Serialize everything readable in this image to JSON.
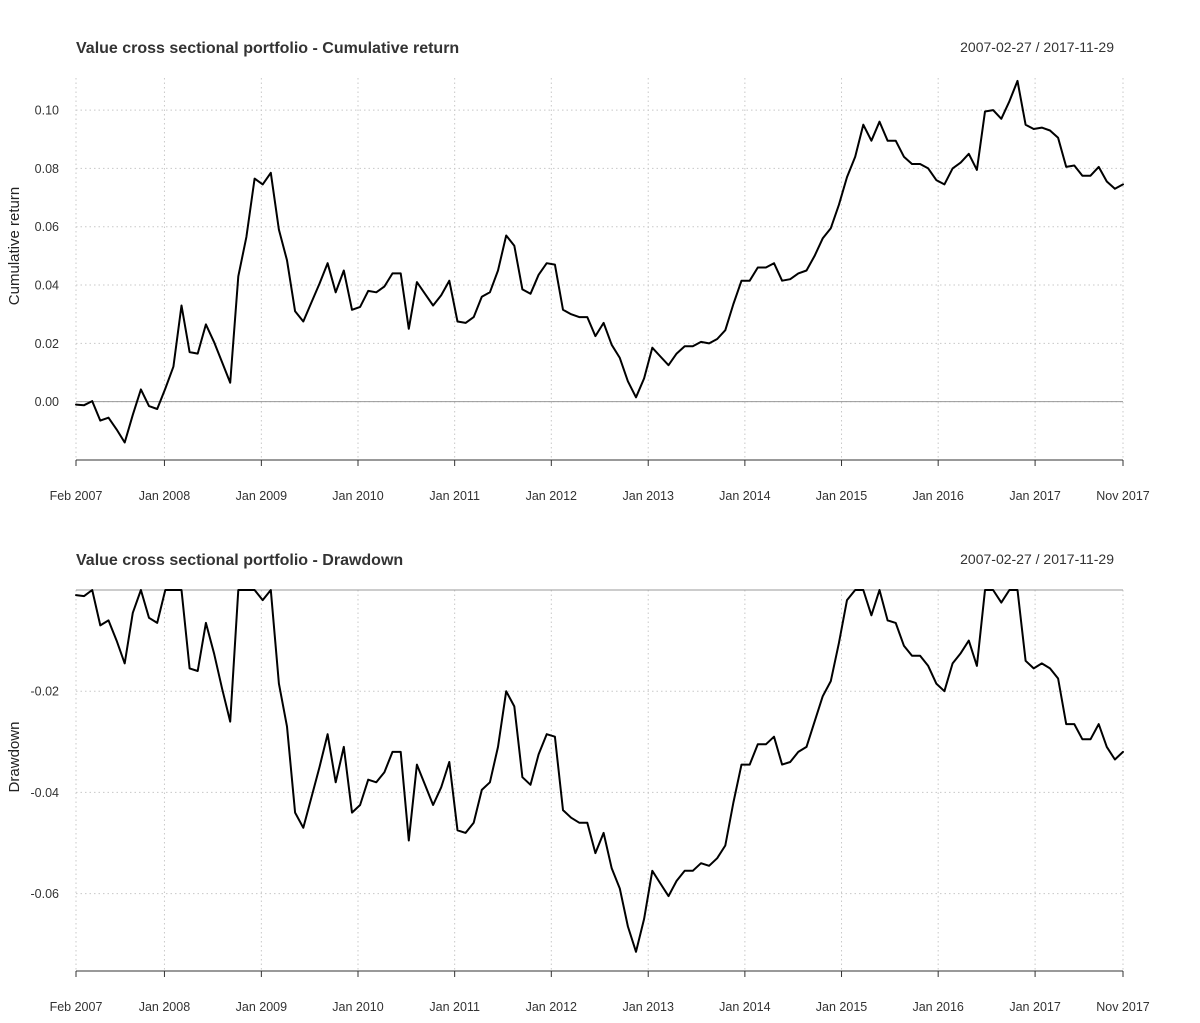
{
  "chart_data": [
    {
      "type": "line",
      "title": "Value cross sectional portfolio - Cumulative return",
      "date_range": "2007-02-27 / 2017-11-29",
      "xlabel": "",
      "ylabel": "Cumulative return",
      "x_tick_labels": [
        "Feb 2007",
        "Jan 2008",
        "Jan 2009",
        "Jan 2010",
        "Jan 2011",
        "Jan 2012",
        "Jan 2013",
        "Jan 2014",
        "Jan 2015",
        "Jan 2016",
        "Jan 2017",
        "Nov 2017"
      ],
      "x_tick_dates": [
        "2007-02-01",
        "2008-01-01",
        "2009-01-01",
        "2010-01-01",
        "2011-01-01",
        "2012-01-01",
        "2013-01-01",
        "2014-01-01",
        "2015-01-01",
        "2016-01-01",
        "2017-01-01",
        "2017-11-01"
      ],
      "y_tick_labels": [
        "0.00",
        "0.02",
        "0.04",
        "0.06",
        "0.08",
        "0.10"
      ],
      "y_ticks": [
        0,
        0.02,
        0.04,
        0.06,
        0.08,
        0.1
      ],
      "ylim": [
        -0.02,
        0.111
      ],
      "xlim": [
        "2007-02-01",
        "2017-11-29"
      ],
      "grid": true,
      "reference_line": 0,
      "x": [
        "2007-02",
        "2007-03",
        "2007-04",
        "2007-05",
        "2007-06",
        "2007-07",
        "2007-08",
        "2007-09",
        "2007-10",
        "2007-11",
        "2007-12",
        "2008-01",
        "2008-02",
        "2008-03",
        "2008-04",
        "2008-05",
        "2008-06",
        "2008-07",
        "2008-08",
        "2008-09",
        "2008-10",
        "2008-11",
        "2008-12",
        "2009-01",
        "2009-02",
        "2009-03",
        "2009-04",
        "2009-05",
        "2009-06",
        "2009-07",
        "2009-08",
        "2009-09",
        "2009-10",
        "2009-11",
        "2009-12",
        "2010-01",
        "2010-02",
        "2010-03",
        "2010-04",
        "2010-05",
        "2010-06",
        "2010-07",
        "2010-08",
        "2010-09",
        "2010-10",
        "2010-11",
        "2010-12",
        "2011-01",
        "2011-02",
        "2011-03",
        "2011-04",
        "2011-05",
        "2011-06",
        "2011-07",
        "2011-08",
        "2011-09",
        "2011-10",
        "2011-11",
        "2011-12",
        "2012-01",
        "2012-02",
        "2012-03",
        "2012-04",
        "2012-05",
        "2012-06",
        "2012-07",
        "2012-08",
        "2012-09",
        "2012-10",
        "2012-11",
        "2012-12",
        "2013-01",
        "2013-02",
        "2013-03",
        "2013-04",
        "2013-05",
        "2013-06",
        "2013-07",
        "2013-08",
        "2013-09",
        "2013-10",
        "2013-11",
        "2013-12",
        "2014-01",
        "2014-02",
        "2014-03",
        "2014-04",
        "2014-05",
        "2014-06",
        "2014-07",
        "2014-08",
        "2014-09",
        "2014-10",
        "2014-11",
        "2014-12",
        "2015-01",
        "2015-02",
        "2015-03",
        "2015-04",
        "2015-05",
        "2015-06",
        "2015-07",
        "2015-08",
        "2015-09",
        "2015-10",
        "2015-11",
        "2015-12",
        "2016-01",
        "2016-02",
        "2016-03",
        "2016-04",
        "2016-05",
        "2016-06",
        "2016-07",
        "2016-08",
        "2016-09",
        "2016-10",
        "2016-11",
        "2016-12",
        "2017-01",
        "2017-02",
        "2017-03",
        "2017-04",
        "2017-05",
        "2017-06",
        "2017-07",
        "2017-08",
        "2017-09",
        "2017-10",
        "2017-11"
      ],
      "series": [
        {
          "values": [
            -0.001,
            -0.0012,
            0.0002,
            -0.0065,
            -0.0055,
            -0.0095,
            -0.014,
            -0.0045,
            0.0042,
            -0.0015,
            -0.0025,
            0.0045,
            0.012,
            0.033,
            0.017,
            0.0165,
            0.0265,
            0.0205,
            0.0135,
            0.0065,
            0.043,
            0.0565,
            0.0765,
            0.0745,
            0.0785,
            0.059,
            0.0485,
            0.031,
            0.0275,
            0.034,
            0.0405,
            0.0475,
            0.0375,
            0.045,
            0.0315,
            0.0325,
            0.038,
            0.0375,
            0.0395,
            0.044,
            0.044,
            0.025,
            0.041,
            0.037,
            0.033,
            0.0365,
            0.0415,
            0.0275,
            0.027,
            0.029,
            0.036,
            0.0375,
            0.045,
            0.057,
            0.0535,
            0.0385,
            0.037,
            0.0435,
            0.0475,
            0.047,
            0.0315,
            0.03,
            0.029,
            0.029,
            0.0225,
            0.027,
            0.0195,
            0.015,
            0.007,
            0.0015,
            0.008,
            0.0185,
            0.0155,
            0.0125,
            0.0165,
            0.019,
            0.019,
            0.0205,
            0.02,
            0.0215,
            0.0245,
            0.0335,
            0.0415,
            0.0415,
            0.046,
            0.046,
            0.0475,
            0.0415,
            0.042,
            0.044,
            0.045,
            0.05,
            0.056,
            0.0595,
            0.0675,
            0.077,
            0.084,
            0.095,
            0.0895,
            0.096,
            0.0895,
            0.0895,
            0.084,
            0.0815,
            0.0815,
            0.08,
            0.076,
            0.0745,
            0.08,
            0.082,
            0.085,
            0.0795,
            0.0995,
            0.1,
            0.097,
            0.103,
            0.11,
            0.095,
            0.0935,
            0.094,
            0.093,
            0.0905,
            0.0805,
            0.081,
            0.0775,
            0.0775,
            0.0805,
            0.0755,
            0.073,
            0.0745
          ]
        }
      ]
    },
    {
      "type": "line",
      "title": "Value cross sectional portfolio - Drawdown",
      "date_range": "2007-02-27 / 2017-11-29",
      "xlabel": "",
      "ylabel": "Drawdown",
      "x_tick_labels": [
        "Feb 2007",
        "Jan 2008",
        "Jan 2009",
        "Jan 2010",
        "Jan 2011",
        "Jan 2012",
        "Jan 2013",
        "Jan 2014",
        "Jan 2015",
        "Jan 2016",
        "Jan 2017",
        "Nov 2017"
      ],
      "x_tick_dates": [
        "2007-02-01",
        "2008-01-01",
        "2009-01-01",
        "2010-01-01",
        "2011-01-01",
        "2012-01-01",
        "2013-01-01",
        "2014-01-01",
        "2015-01-01",
        "2016-01-01",
        "2017-01-01",
        "2017-11-01"
      ],
      "y_tick_labels": [
        "-0.02",
        "-0.04",
        "-0.06"
      ],
      "y_ticks": [
        -0.02,
        -0.04,
        -0.06
      ],
      "ylim": [
        -0.0753,
        0
      ],
      "xlim": [
        "2007-02-01",
        "2017-11-29"
      ],
      "grid": true,
      "reference_line": 0,
      "x": [
        "2007-02",
        "2007-03",
        "2007-04",
        "2007-05",
        "2007-06",
        "2007-07",
        "2007-08",
        "2007-09",
        "2007-10",
        "2007-11",
        "2007-12",
        "2008-01",
        "2008-02",
        "2008-03",
        "2008-04",
        "2008-05",
        "2008-06",
        "2008-07",
        "2008-08",
        "2008-09",
        "2008-10",
        "2008-11",
        "2008-12",
        "2009-01",
        "2009-02",
        "2009-03",
        "2009-04",
        "2009-05",
        "2009-06",
        "2009-07",
        "2009-08",
        "2009-09",
        "2009-10",
        "2009-11",
        "2009-12",
        "2010-01",
        "2010-02",
        "2010-03",
        "2010-04",
        "2010-05",
        "2010-06",
        "2010-07",
        "2010-08",
        "2010-09",
        "2010-10",
        "2010-11",
        "2010-12",
        "2011-01",
        "2011-02",
        "2011-03",
        "2011-04",
        "2011-05",
        "2011-06",
        "2011-07",
        "2011-08",
        "2011-09",
        "2011-10",
        "2011-11",
        "2011-12",
        "2012-01",
        "2012-02",
        "2012-03",
        "2012-04",
        "2012-05",
        "2012-06",
        "2012-07",
        "2012-08",
        "2012-09",
        "2012-10",
        "2012-11",
        "2012-12",
        "2013-01",
        "2013-02",
        "2013-03",
        "2013-04",
        "2013-05",
        "2013-06",
        "2013-07",
        "2013-08",
        "2013-09",
        "2013-10",
        "2013-11",
        "2013-12",
        "2014-01",
        "2014-02",
        "2014-03",
        "2014-04",
        "2014-05",
        "2014-06",
        "2014-07",
        "2014-08",
        "2014-09",
        "2014-10",
        "2014-11",
        "2014-12",
        "2015-01",
        "2015-02",
        "2015-03",
        "2015-04",
        "2015-05",
        "2015-06",
        "2015-07",
        "2015-08",
        "2015-09",
        "2015-10",
        "2015-11",
        "2015-12",
        "2016-01",
        "2016-02",
        "2016-03",
        "2016-04",
        "2016-05",
        "2016-06",
        "2016-07",
        "2016-08",
        "2016-09",
        "2016-10",
        "2016-11",
        "2016-12",
        "2017-01",
        "2017-02",
        "2017-03",
        "2017-04",
        "2017-05",
        "2017-06",
        "2017-07",
        "2017-08",
        "2017-09",
        "2017-10",
        "2017-11"
      ],
      "series": [
        {
          "values": [
            -0.001,
            -0.0012,
            0.0,
            -0.007,
            -0.006,
            -0.01,
            -0.0145,
            -0.0045,
            0.0,
            -0.0055,
            -0.0065,
            0.0,
            0.0,
            0.0,
            -0.0155,
            -0.016,
            -0.0065,
            -0.0125,
            -0.0195,
            -0.026,
            0.0,
            0.0,
            0.0,
            -0.002,
            0.0,
            -0.0185,
            -0.027,
            -0.044,
            -0.047,
            -0.041,
            -0.035,
            -0.0285,
            -0.038,
            -0.031,
            -0.044,
            -0.0425,
            -0.0375,
            -0.038,
            -0.036,
            -0.032,
            -0.032,
            -0.0495,
            -0.0345,
            -0.0385,
            -0.0425,
            -0.039,
            -0.034,
            -0.0475,
            -0.048,
            -0.046,
            -0.0395,
            -0.038,
            -0.031,
            -0.02,
            -0.023,
            -0.037,
            -0.0385,
            -0.0325,
            -0.0285,
            -0.029,
            -0.0435,
            -0.045,
            -0.046,
            -0.046,
            -0.052,
            -0.048,
            -0.055,
            -0.059,
            -0.0665,
            -0.0715,
            -0.065,
            -0.0555,
            -0.058,
            -0.0605,
            -0.0575,
            -0.0555,
            -0.0555,
            -0.054,
            -0.0545,
            -0.053,
            -0.0505,
            -0.042,
            -0.0345,
            -0.0345,
            -0.0305,
            -0.0305,
            -0.029,
            -0.0345,
            -0.034,
            -0.032,
            -0.031,
            -0.026,
            -0.021,
            -0.018,
            -0.0105,
            -0.002,
            0.0,
            0.0,
            -0.005,
            0.0,
            -0.006,
            -0.0065,
            -0.011,
            -0.013,
            -0.013,
            -0.015,
            -0.0185,
            -0.02,
            -0.0145,
            -0.0125,
            -0.01,
            -0.015,
            0.0,
            0.0,
            -0.0025,
            0.0,
            0.0,
            -0.014,
            -0.0155,
            -0.0145,
            -0.0155,
            -0.0175,
            -0.0265,
            -0.0265,
            -0.0295,
            -0.0295,
            -0.0265,
            -0.031,
            -0.0335,
            -0.032
          ]
        }
      ]
    }
  ],
  "colors": {
    "series": "#000000",
    "grid": "#c8c8c8",
    "axis": "#333333",
    "reference": "#999999",
    "text": "#333333"
  }
}
